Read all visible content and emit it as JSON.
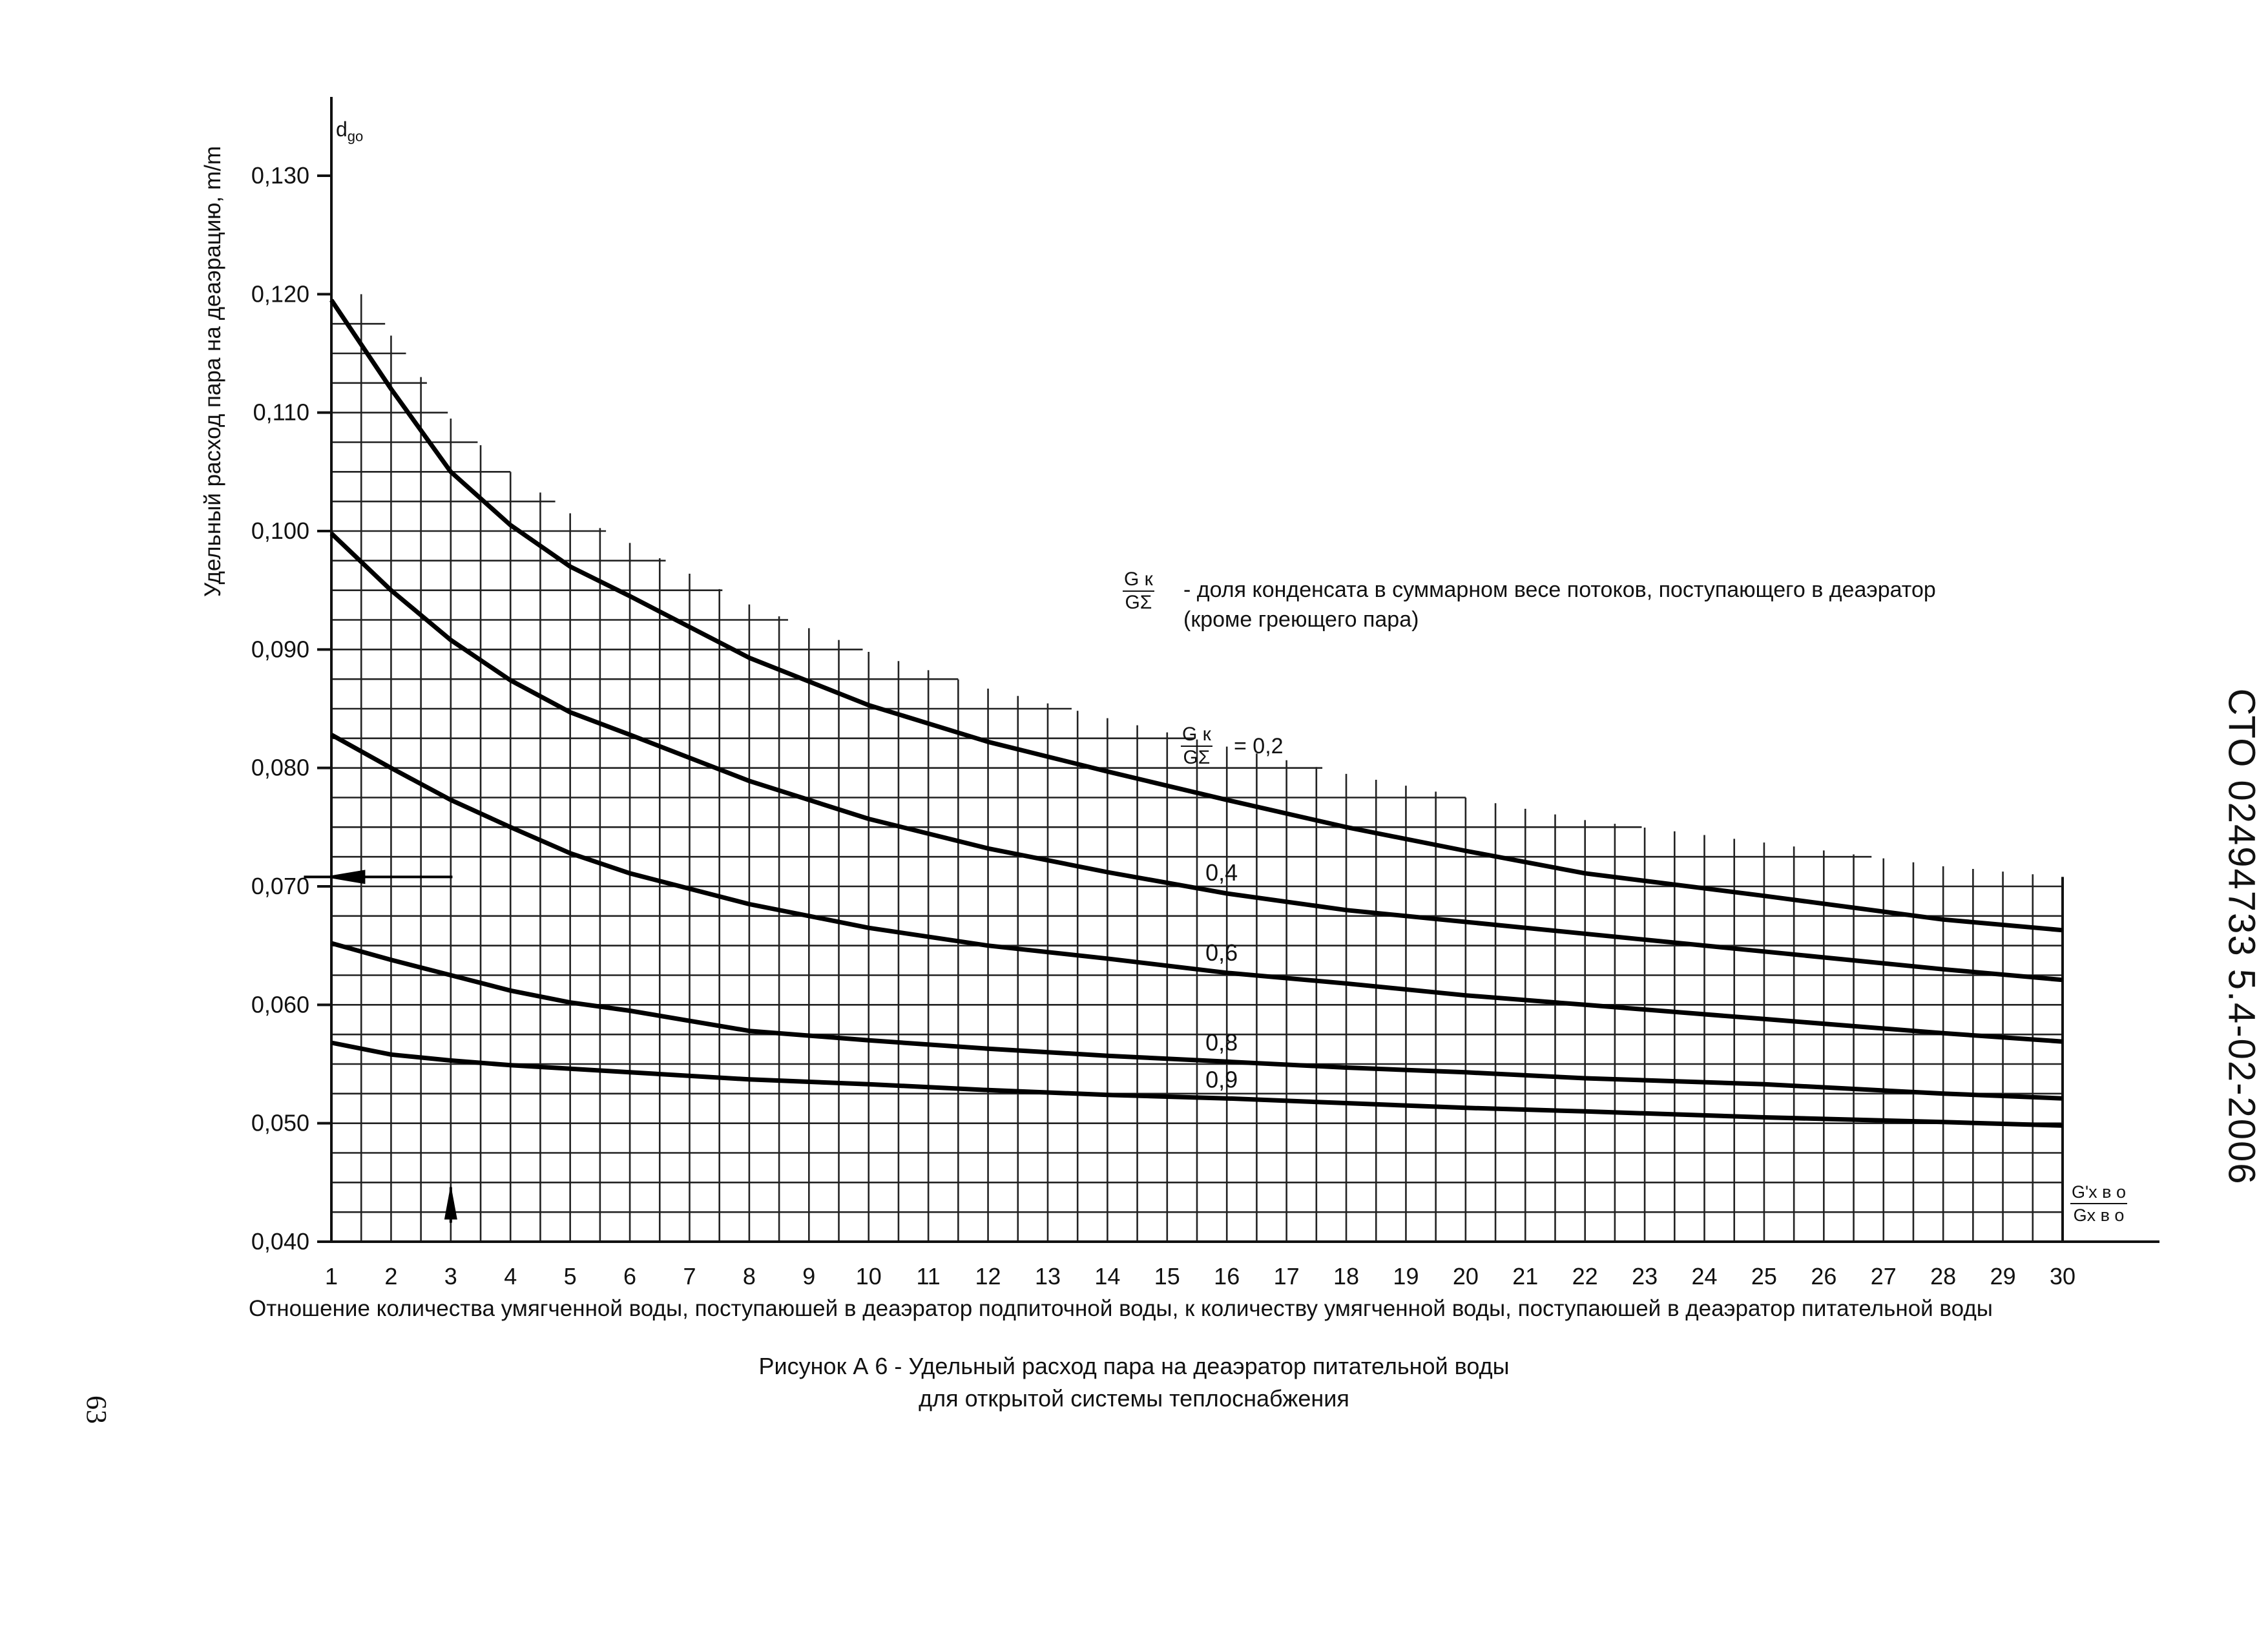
{
  "chart_data": {
    "type": "line",
    "title": "",
    "xlabel": "Отношение количества умягченной воды, поступаюшей в деаэратор подпиточной воды, к количеству умягченной воды, поступаюшей в деаэратор питательной воды",
    "ylabel": "Удельный расход пара на деаэрацию, m/m",
    "y_symbol": "d",
    "y_symbol_sub": "go",
    "x_axis_fraction": {
      "numerator": "G'х в о",
      "denominator": "Gх в о"
    },
    "xlim": [
      1,
      30
    ],
    "ylim": [
      0.04,
      0.13
    ],
    "x_ticks": [
      1,
      2,
      3,
      4,
      5,
      6,
      7,
      8,
      9,
      10,
      11,
      12,
      13,
      14,
      15,
      16,
      17,
      18,
      19,
      20,
      21,
      22,
      23,
      24,
      25,
      26,
      27,
      28,
      29,
      30
    ],
    "y_ticks": [
      "0,040",
      "0,050",
      "0,060",
      "0,070",
      "0,080",
      "0,090",
      "0,100",
      "0,110",
      "0,120",
      "0,130"
    ],
    "y_tick_values": [
      0.04,
      0.05,
      0.06,
      0.07,
      0.08,
      0.09,
      0.1,
      0.11,
      0.12,
      0.13
    ],
    "grid": true,
    "x": [
      1,
      2,
      3,
      4,
      5,
      6,
      8,
      10,
      12,
      14,
      16,
      18,
      20,
      22,
      25,
      28,
      30
    ],
    "series": [
      {
        "name": "0,2",
        "values": [
          0.1195,
          0.112,
          0.105,
          0.1005,
          0.097,
          0.0945,
          0.0893,
          0.0853,
          0.0822,
          0.0797,
          0.0773,
          0.075,
          0.073,
          0.0711,
          0.0692,
          0.0672,
          0.0663
        ]
      },
      {
        "name": "0,4",
        "values": [
          0.0998,
          0.095,
          0.0908,
          0.0874,
          0.0847,
          0.0828,
          0.0789,
          0.0757,
          0.0732,
          0.0712,
          0.0694,
          0.068,
          0.067,
          0.066,
          0.0645,
          0.063,
          0.0621
        ]
      },
      {
        "name": "0,6",
        "values": [
          0.0828,
          0.08,
          0.0773,
          0.075,
          0.0728,
          0.0711,
          0.0685,
          0.0665,
          0.065,
          0.0639,
          0.0627,
          0.0618,
          0.0608,
          0.06,
          0.0588,
          0.0576,
          0.0569
        ]
      },
      {
        "name": "0,8",
        "values": [
          0.0652,
          0.0638,
          0.0625,
          0.0612,
          0.0602,
          0.0595,
          0.0578,
          0.057,
          0.0563,
          0.0557,
          0.0552,
          0.0547,
          0.0543,
          0.0538,
          0.0533,
          0.0525,
          0.0521
        ]
      },
      {
        "name": "0,9",
        "values": [
          0.0568,
          0.0558,
          0.0553,
          0.0549,
          0.0546,
          0.0543,
          0.0537,
          0.0533,
          0.0528,
          0.0524,
          0.0521,
          0.0517,
          0.0513,
          0.051,
          0.0505,
          0.0501,
          0.0498
        ]
      }
    ],
    "annotations": [
      {
        "kind": "arrow",
        "direction": "left",
        "x": 2.0,
        "y": 0.0708
      },
      {
        "kind": "arrow",
        "direction": "up",
        "x": 3.0,
        "y": 0.0446
      }
    ]
  },
  "legend": {
    "fraction_num": "G к",
    "fraction_den": "GΣ",
    "text": "- доля конденсата в суммарном весе потоков, поступающего в деаэратор (кроме греющего пара)"
  },
  "series_label_02_value": "= 0,2",
  "caption_line1": "Рисунок А 6 - Удельный расход пара на деаэратор питательной воды",
  "caption_line2": "для открытой системы теплоснабжения",
  "page_number": "63",
  "standard_code": "СТО 02494733 5.4-02-2006"
}
